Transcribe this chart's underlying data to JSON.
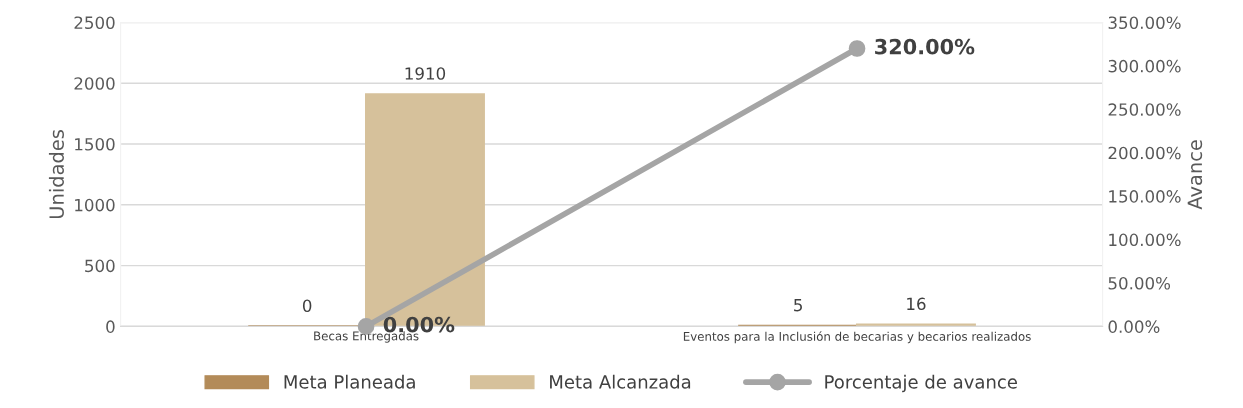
{
  "chart_data": {
    "type": "bar",
    "categories": [
      "Becas Entregadas",
      "Eventos para la Inclusión de becarias y becarios realizados"
    ],
    "series": [
      {
        "name": "Meta Planeada",
        "color": "#b38b59",
        "values": [
          0,
          5
        ],
        "value_labels": [
          "0",
          "5"
        ]
      },
      {
        "name": "Meta Alcanzada",
        "color": "#d6c19b",
        "values": [
          1910,
          16
        ],
        "value_labels": [
          "1910",
          "16"
        ]
      },
      {
        "name": "Porcentaje de avance",
        "type": "line",
        "axis": "y2",
        "color": "#a5a5a5",
        "marker": "circle",
        "values": [
          0,
          320
        ],
        "value_labels": [
          "0.00%",
          "320.00%"
        ]
      }
    ],
    "ylabel": "Unidades",
    "y2label": "Avance",
    "ylim": [
      0,
      2500
    ],
    "yticks": [
      0,
      500,
      1000,
      1500,
      2000,
      2500
    ],
    "y2lim": [
      0,
      350
    ],
    "y2ticks": [
      {
        "value": 0,
        "label": "0.00%"
      },
      {
        "value": 50,
        "label": "50.00%"
      },
      {
        "value": 100,
        "label": "100.00%"
      },
      {
        "value": 150,
        "label": "150.00%"
      },
      {
        "value": 200,
        "label": "200.00%"
      },
      {
        "value": 250,
        "label": "250.00%"
      },
      {
        "value": 300,
        "label": "300.00%"
      },
      {
        "value": 350,
        "label": "350.00%"
      }
    ],
    "grid": "y",
    "legend": "bottom"
  }
}
